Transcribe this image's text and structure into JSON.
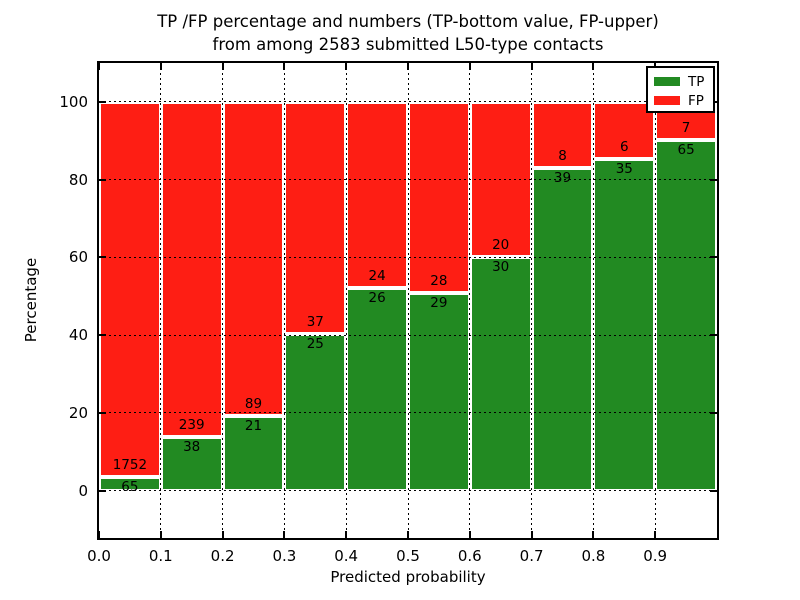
{
  "title_line1": "TP /FP percentage and numbers (TP-bottom value, FP-upper)",
  "title_line2": "from among 2583 submitted L50-type contacts",
  "chart_data": {
    "type": "bar",
    "stacked": true,
    "title": "TP /FP percentage and numbers (TP-bottom value, FP-upper)\nfrom among 2583 submitted L50-type contacts",
    "xlabel": "Predicted probability",
    "ylabel": "Percentage",
    "total_submitted": 2583,
    "bin_starts": [
      0.0,
      0.1,
      0.2,
      0.3,
      0.4,
      0.5,
      0.6,
      0.7,
      0.8,
      0.9
    ],
    "bin_width": 0.1,
    "series": [
      {
        "name": "TP",
        "color": "#228a22",
        "counts": [
          65,
          38,
          21,
          25,
          26,
          29,
          30,
          39,
          35,
          65
        ]
      },
      {
        "name": "FP",
        "color": "#fe1e14",
        "counts": [
          1752,
          239,
          89,
          37,
          24,
          28,
          20,
          8,
          6,
          7
        ]
      }
    ],
    "tp_percent": [
      3.58,
      13.72,
      19.09,
      40.32,
      52.0,
      50.88,
      60.0,
      82.98,
      85.37,
      90.28
    ],
    "bar_total_percent": 100,
    "xticks": [
      "0.0",
      "0.1",
      "0.2",
      "0.3",
      "0.4",
      "0.5",
      "0.6",
      "0.7",
      "0.8",
      "0.9"
    ],
    "yticks": [
      0,
      20,
      40,
      60,
      80,
      100
    ],
    "xlim": [
      0.0,
      1.0
    ],
    "ylim": [
      -12.2,
      110
    ],
    "grid": true,
    "grid_style": "dotted",
    "legend": {
      "position": "upper right",
      "entries": [
        {
          "label": "TP",
          "color": "#228a22"
        },
        {
          "label": "FP",
          "color": "#fe1e14"
        }
      ]
    }
  }
}
